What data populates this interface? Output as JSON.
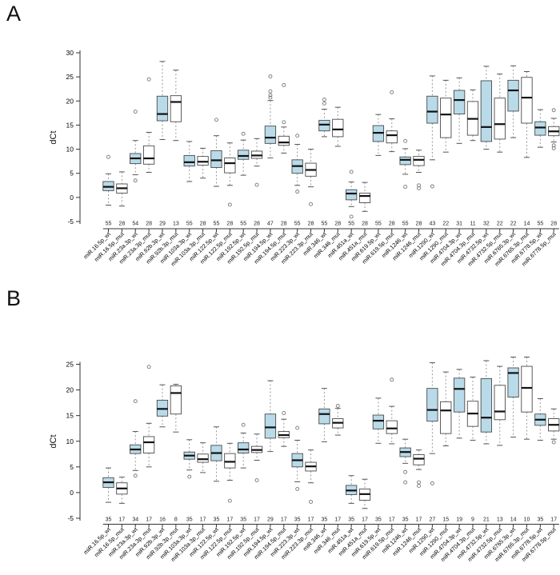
{
  "page": {
    "background": "#ffffff"
  },
  "colors": {
    "wt_fill": "#b9dbe9",
    "mut_fill": "#ffffff",
    "box_border": "#4a4a4a",
    "median": "#111111",
    "whisker": "#999999",
    "staple": "#555555",
    "outlier": "#777777",
    "axis": "#333333",
    "text": "#000000",
    "count_text": "#222222"
  },
  "chart_data": [
    {
      "type": "box",
      "panel_label": "A",
      "ylabel": "dCt",
      "ylim": [
        -6.5,
        30.8
      ],
      "yticks": [
        30,
        25,
        20,
        15,
        10,
        5,
        0,
        -5
      ],
      "grid": false,
      "legend": null,
      "categories": [
        "miR.16.5p_wt",
        "miR.16.5p_mut",
        "miR.23a.3p_wt",
        "miR.23a.3p_mut",
        "miR.92b.3p_wt",
        "miR.92b.3p_mut",
        "miR.103a.3p_wt",
        "miR.103a.3p_mut",
        "miR.122.5p_wt",
        "miR.122.5p_mut",
        "miR.192.5p_wt",
        "miR.192.5p_mut",
        "miR.194.5p_wt",
        "miR.194.5p_mut",
        "miR.223.3p_wt",
        "miR.223.3p_mut",
        "miR.346_wt",
        "miR.346_mut",
        "miR.451a_wt",
        "miR.451a_mut",
        "miR.619.5p_wt",
        "miR.619.5p_mut",
        "miR.1246_wt",
        "miR.1246_mut",
        "miR.1290_wt",
        "miR.1290_mut",
        "miR.4704.3p_wt",
        "miR.4704.3p_mut",
        "miR.4732.5p_wt",
        "miR.4732.5p_mut",
        "miR.6765.3p_wt",
        "miR.6765.3p_mut",
        "miR.6778.5p_wt",
        "miR.6778.5p_mut"
      ],
      "counts": [
        55,
        28,
        54,
        28,
        29,
        13,
        55,
        28,
        55,
        28,
        55,
        28,
        47,
        28,
        55,
        28,
        55,
        28,
        55,
        28,
        55,
        28,
        55,
        28,
        43,
        22,
        31,
        11,
        32,
        22,
        22,
        14,
        55,
        28
      ],
      "series": [
        {
          "group": "wt",
          "whisker_low": -1.6,
          "q1": 1.4,
          "median": 2.2,
          "q3": 3.3,
          "whisker_high": 4.9,
          "outliers": [
            8.4
          ]
        },
        {
          "group": "mut",
          "whisker_low": -1.8,
          "q1": 0.9,
          "median": 1.9,
          "q3": 2.8,
          "whisker_high": 5.3,
          "outliers": []
        },
        {
          "group": "wt",
          "whisker_low": 4.7,
          "q1": 7.0,
          "median": 8.1,
          "q3": 9.1,
          "whisker_high": 11.8,
          "outliers": [
            17.8,
            3.5
          ]
        },
        {
          "group": "mut",
          "whisker_low": 5.2,
          "q1": 6.9,
          "median": 8.1,
          "q3": 10.7,
          "whisker_high": 13.5,
          "outliers": [
            24.5
          ]
        },
        {
          "group": "wt",
          "whisker_low": 12.0,
          "q1": 15.9,
          "median": 17.3,
          "q3": 21.0,
          "whisker_high": 28.2,
          "outliers": []
        },
        {
          "group": "mut",
          "whisker_low": 11.8,
          "q1": 15.7,
          "median": 19.8,
          "q3": 21.1,
          "whisker_high": 26.4,
          "outliers": []
        },
        {
          "group": "wt",
          "whisker_low": 3.3,
          "q1": 6.5,
          "median": 7.3,
          "q3": 8.7,
          "whisker_high": 11.6,
          "outliers": []
        },
        {
          "group": "mut",
          "whisker_low": 4.0,
          "q1": 6.7,
          "median": 7.4,
          "q3": 8.5,
          "whisker_high": 10.2,
          "outliers": []
        },
        {
          "group": "wt",
          "whisker_low": 2.3,
          "q1": 6.2,
          "median": 7.7,
          "q3": 9.7,
          "whisker_high": 12.8,
          "outliers": [
            16.1
          ]
        },
        {
          "group": "mut",
          "whisker_low": 2.5,
          "q1": 5.1,
          "median": 7.1,
          "q3": 8.2,
          "whisker_high": 11.3,
          "outliers": [
            -1.5
          ]
        },
        {
          "group": "wt",
          "whisker_low": 4.6,
          "q1": 7.9,
          "median": 8.6,
          "q3": 9.8,
          "whisker_high": 11.9,
          "outliers": [
            13.2
          ]
        },
        {
          "group": "mut",
          "whisker_low": 6.5,
          "q1": 8.1,
          "median": 8.7,
          "q3": 9.6,
          "whisker_high": 12.2,
          "outliers": [
            2.6
          ]
        },
        {
          "group": "wt",
          "whisker_low": 8.2,
          "q1": 11.2,
          "median": 12.4,
          "q3": 14.8,
          "whisker_high": 20.1,
          "outliers": [
            25.1,
            22.0,
            21.2,
            20.7
          ]
        },
        {
          "group": "mut",
          "whisker_low": 9.2,
          "q1": 10.8,
          "median": 11.4,
          "q3": 12.7,
          "whisker_high": 14.6,
          "outliers": [
            23.3,
            15.6
          ]
        },
        {
          "group": "wt",
          "whisker_low": 2.5,
          "q1": 5.0,
          "median": 6.5,
          "q3": 7.8,
          "whisker_high": 11.0,
          "outliers": [
            12.8,
            1.2
          ]
        },
        {
          "group": "mut",
          "whisker_low": 2.2,
          "q1": 4.4,
          "median": 5.7,
          "q3": 7.1,
          "whisker_high": 10.0,
          "outliers": [
            -1.4
          ]
        },
        {
          "group": "wt",
          "whisker_low": 12.6,
          "q1": 13.8,
          "median": 15.1,
          "q3": 16.0,
          "whisker_high": 18.3,
          "outliers": [
            20.3,
            19.5
          ]
        },
        {
          "group": "mut",
          "whisker_low": 10.6,
          "q1": 12.6,
          "median": 14.1,
          "q3": 16.2,
          "whisker_high": 18.7,
          "outliers": []
        },
        {
          "group": "wt",
          "whisker_low": -1.9,
          "q1": -0.5,
          "median": 0.8,
          "q3": 1.6,
          "whisker_high": 3.2,
          "outliers": [
            5.3,
            -4.0
          ]
        },
        {
          "group": "mut",
          "whisker_low": -2.9,
          "q1": -1.1,
          "median": 0.3,
          "q3": 0.9,
          "whisker_high": 3.1,
          "outliers": []
        },
        {
          "group": "wt",
          "whisker_low": 8.7,
          "q1": 11.6,
          "median": 13.4,
          "q3": 14.9,
          "whisker_high": 17.2,
          "outliers": []
        },
        {
          "group": "mut",
          "whisker_low": 9.5,
          "q1": 11.3,
          "median": 12.9,
          "q3": 13.8,
          "whisker_high": 16.3,
          "outliers": [
            21.8
          ]
        },
        {
          "group": "wt",
          "whisker_low": 4.8,
          "q1": 6.8,
          "median": 7.8,
          "q3": 8.4,
          "whisker_high": 10.1,
          "outliers": [
            11.7,
            2.2
          ]
        },
        {
          "group": "mut",
          "whisker_low": 5.2,
          "q1": 6.6,
          "median": 7.8,
          "q3": 8.5,
          "whisker_high": 9.8,
          "outliers": [
            2.5,
            1.9
          ]
        },
        {
          "group": "wt",
          "whisker_low": 7.8,
          "q1": 15.4,
          "median": 17.8,
          "q3": 21.0,
          "whisker_high": 25.2,
          "outliers": [
            2.3
          ]
        },
        {
          "group": "mut",
          "whisker_low": 9.4,
          "q1": 12.4,
          "median": 17.2,
          "q3": 20.6,
          "whisker_high": 24.3,
          "outliers": []
        },
        {
          "group": "wt",
          "whisker_low": 11.2,
          "q1": 17.3,
          "median": 20.2,
          "q3": 22.2,
          "whisker_high": 24.8,
          "outliers": []
        },
        {
          "group": "mut",
          "whisker_low": 11.8,
          "q1": 12.9,
          "median": 16.3,
          "q3": 19.9,
          "whisker_high": 22.3,
          "outliers": []
        },
        {
          "group": "wt",
          "whisker_low": 10.0,
          "q1": 11.6,
          "median": 14.6,
          "q3": 24.2,
          "whisker_high": 27.2,
          "outliers": []
        },
        {
          "group": "mut",
          "whisker_low": 9.4,
          "q1": 12.1,
          "median": 15.2,
          "q3": 20.6,
          "whisker_high": 25.6,
          "outliers": []
        },
        {
          "group": "wt",
          "whisker_low": 12.4,
          "q1": 17.9,
          "median": 22.2,
          "q3": 24.3,
          "whisker_high": 27.3,
          "outliers": []
        },
        {
          "group": "mut",
          "whisker_low": 8.3,
          "q1": 15.4,
          "median": 20.7,
          "q3": 24.9,
          "whisker_high": 26.1,
          "outliers": []
        },
        {
          "group": "wt",
          "whisker_low": 10.4,
          "q1": 12.9,
          "median": 14.5,
          "q3": 15.7,
          "whisker_high": 18.2,
          "outliers": []
        },
        {
          "group": "mut",
          "whisker_low": 11.5,
          "q1": 12.8,
          "median": 13.7,
          "q3": 14.7,
          "whisker_high": 16.4,
          "outliers": [
            18.1,
            10.8,
            10.2
          ]
        }
      ]
    },
    {
      "type": "box",
      "panel_label": "B",
      "ylabel": "dCt",
      "ylim": [
        -5.8,
        27.0
      ],
      "yticks": [
        25,
        20,
        15,
        10,
        5,
        0,
        -5
      ],
      "grid": false,
      "legend": null,
      "categories": [
        "miR.16.5p_wt",
        "miR.16.5p_mut",
        "miR.23a.3p_wt",
        "miR.23a.3p_mut",
        "miR.92b.3p_wt",
        "miR.92b.3p_mut",
        "miR.103a.3p_wt",
        "miR.103a.3p_mut",
        "miR.122.5p_wt",
        "miR.122.5p_mut",
        "miR.192.5p_wt",
        "miR.192.5p_mut",
        "miR.194.5p_wt",
        "miR.194.5p_mut",
        "miR.223.3p_wt",
        "miR.223.3p_mut",
        "miR.346_wt",
        "miR.346_mut",
        "miR.451a_wt",
        "miR.451a_mut",
        "miR.619.5p_wt",
        "miR.619.5p_mut",
        "miR.1246_wt",
        "miR.1246_mut",
        "miR.1290_wt",
        "miR.1290_mut",
        "miR.4704.3p_wt",
        "miR.4704.3p_mut",
        "miR.4732.5p_wt",
        "miR.4732.5p_mut",
        "miR.6765.3p_wt",
        "miR.6765.3p_mut",
        "miR.6778.5p_wt",
        "miR.6778.5p_mut"
      ],
      "counts": [
        35,
        17,
        34,
        17,
        16,
        8,
        35,
        17,
        35,
        17,
        35,
        17,
        29,
        17,
        35,
        17,
        35,
        17,
        35,
        17,
        35,
        17,
        35,
        17,
        27,
        15,
        19,
        9,
        21,
        13,
        14,
        10,
        35,
        17
      ],
      "series": [
        {
          "group": "wt",
          "whisker_low": -1.9,
          "q1": 1.0,
          "median": 2.0,
          "q3": 2.9,
          "whisker_high": 4.8,
          "outliers": []
        },
        {
          "group": "mut",
          "whisker_low": -2.1,
          "q1": -0.3,
          "median": 0.8,
          "q3": 1.9,
          "whisker_high": 3.0,
          "outliers": []
        },
        {
          "group": "wt",
          "whisker_low": 4.3,
          "q1": 7.6,
          "median": 8.4,
          "q3": 9.3,
          "whisker_high": 11.9,
          "outliers": [
            17.8,
            3.3
          ]
        },
        {
          "group": "mut",
          "whisker_low": 5.0,
          "q1": 7.7,
          "median": 9.8,
          "q3": 10.9,
          "whisker_high": 13.5,
          "outliers": [
            24.5
          ]
        },
        {
          "group": "wt",
          "whisker_low": 12.8,
          "q1": 14.9,
          "median": 16.3,
          "q3": 18.0,
          "whisker_high": 21.0,
          "outliers": []
        },
        {
          "group": "mut",
          "whisker_low": 11.8,
          "q1": 15.3,
          "median": 19.4,
          "q3": 20.8,
          "whisker_high": 21.1,
          "outliers": []
        },
        {
          "group": "wt",
          "whisker_low": 4.4,
          "q1": 6.5,
          "median": 7.2,
          "q3": 7.9,
          "whisker_high": 10.3,
          "outliers": [
            3.1
          ]
        },
        {
          "group": "mut",
          "whisker_low": 3.9,
          "q1": 5.9,
          "median": 6.5,
          "q3": 7.5,
          "whisker_high": 9.7,
          "outliers": []
        },
        {
          "group": "wt",
          "whisker_low": 2.2,
          "q1": 6.2,
          "median": 7.7,
          "q3": 9.2,
          "whisker_high": 12.8,
          "outliers": []
        },
        {
          "group": "mut",
          "whisker_low": 2.4,
          "q1": 4.8,
          "median": 6.0,
          "q3": 7.6,
          "whisker_high": 9.6,
          "outliers": [
            -1.6
          ]
        },
        {
          "group": "wt",
          "whisker_low": 4.8,
          "q1": 7.7,
          "median": 8.4,
          "q3": 9.7,
          "whisker_high": 11.6,
          "outliers": [
            13.2
          ]
        },
        {
          "group": "mut",
          "whisker_low": 6.3,
          "q1": 7.8,
          "median": 8.3,
          "q3": 9.0,
          "whisker_high": 11.4,
          "outliers": [
            2.4
          ]
        },
        {
          "group": "wt",
          "whisker_low": 8.0,
          "q1": 10.6,
          "median": 12.7,
          "q3": 15.3,
          "whisker_high": 21.8,
          "outliers": []
        },
        {
          "group": "mut",
          "whisker_low": 9.0,
          "q1": 10.7,
          "median": 11.2,
          "q3": 11.9,
          "whisker_high": 14.3,
          "outliers": [
            15.5
          ]
        },
        {
          "group": "wt",
          "whisker_low": 2.1,
          "q1": 5.0,
          "median": 6.3,
          "q3": 7.6,
          "whisker_high": 10.2,
          "outliers": [
            12.6,
            0.7
          ]
        },
        {
          "group": "mut",
          "whisker_low": 1.9,
          "q1": 4.2,
          "median": 5.1,
          "q3": 5.9,
          "whisker_high": 8.3,
          "outliers": [
            -1.8
          ]
        },
        {
          "group": "wt",
          "whisker_low": 9.9,
          "q1": 13.4,
          "median": 15.3,
          "q3": 16.3,
          "whisker_high": 20.3,
          "outliers": []
        },
        {
          "group": "mut",
          "whisker_low": 11.2,
          "q1": 12.6,
          "median": 13.6,
          "q3": 14.4,
          "whisker_high": 16.4,
          "outliers": [
            16.9
          ]
        },
        {
          "group": "wt",
          "whisker_low": -2.1,
          "q1": -0.4,
          "median": 0.4,
          "q3": 1.4,
          "whisker_high": 3.3,
          "outliers": []
        },
        {
          "group": "mut",
          "whisker_low": -3.1,
          "q1": -1.5,
          "median": -0.3,
          "q3": 0.7,
          "whisker_high": 2.6,
          "outliers": []
        },
        {
          "group": "wt",
          "whisker_low": 9.6,
          "q1": 12.4,
          "median": 14.0,
          "q3": 15.1,
          "whisker_high": 18.4,
          "outliers": []
        },
        {
          "group": "mut",
          "whisker_low": 9.5,
          "q1": 11.5,
          "median": 12.5,
          "q3": 14.0,
          "whisker_high": 16.8,
          "outliers": [
            22.0
          ]
        },
        {
          "group": "wt",
          "whisker_low": 5.7,
          "q1": 7.0,
          "median": 7.9,
          "q3": 8.7,
          "whisker_high": 10.4,
          "outliers": [
            4.0,
            2.0
          ]
        },
        {
          "group": "mut",
          "whisker_low": 4.5,
          "q1": 5.4,
          "median": 6.6,
          "q3": 7.4,
          "whisker_high": 8.3,
          "outliers": [
            2.0,
            1.3
          ]
        },
        {
          "group": "wt",
          "whisker_low": 7.6,
          "q1": 13.9,
          "median": 16.1,
          "q3": 20.3,
          "whisker_high": 25.3,
          "outliers": [
            1.8
          ]
        },
        {
          "group": "mut",
          "whisker_low": 9.1,
          "q1": 11.5,
          "median": 16.0,
          "q3": 17.7,
          "whisker_high": 23.5,
          "outliers": []
        },
        {
          "group": "wt",
          "whisker_low": 10.6,
          "q1": 15.7,
          "median": 20.2,
          "q3": 22.3,
          "whisker_high": 24.0,
          "outliers": []
        },
        {
          "group": "mut",
          "whisker_low": 10.2,
          "q1": 12.9,
          "median": 15.4,
          "q3": 17.8,
          "whisker_high": 22.5,
          "outliers": []
        },
        {
          "group": "wt",
          "whisker_low": 9.5,
          "q1": 11.8,
          "median": 14.6,
          "q3": 22.2,
          "whisker_high": 25.7,
          "outliers": []
        },
        {
          "group": "mut",
          "whisker_low": 9.2,
          "q1": 14.2,
          "median": 15.8,
          "q3": 20.9,
          "whisker_high": 24.6,
          "outliers": []
        },
        {
          "group": "wt",
          "whisker_low": 10.8,
          "q1": 18.6,
          "median": 23.3,
          "q3": 24.3,
          "whisker_high": 26.4,
          "outliers": []
        },
        {
          "group": "mut",
          "whisker_low": 10.4,
          "q1": 15.7,
          "median": 20.4,
          "q3": 24.6,
          "whisker_high": 26.4,
          "outliers": []
        },
        {
          "group": "wt",
          "whisker_low": 10.2,
          "q1": 13.1,
          "median": 14.2,
          "q3": 15.3,
          "whisker_high": 18.3,
          "outliers": []
        },
        {
          "group": "mut",
          "whisker_low": 10.4,
          "q1": 12.0,
          "median": 13.2,
          "q3": 14.4,
          "whisker_high": 16.3,
          "outliers": [
            9.8
          ]
        }
      ]
    }
  ]
}
